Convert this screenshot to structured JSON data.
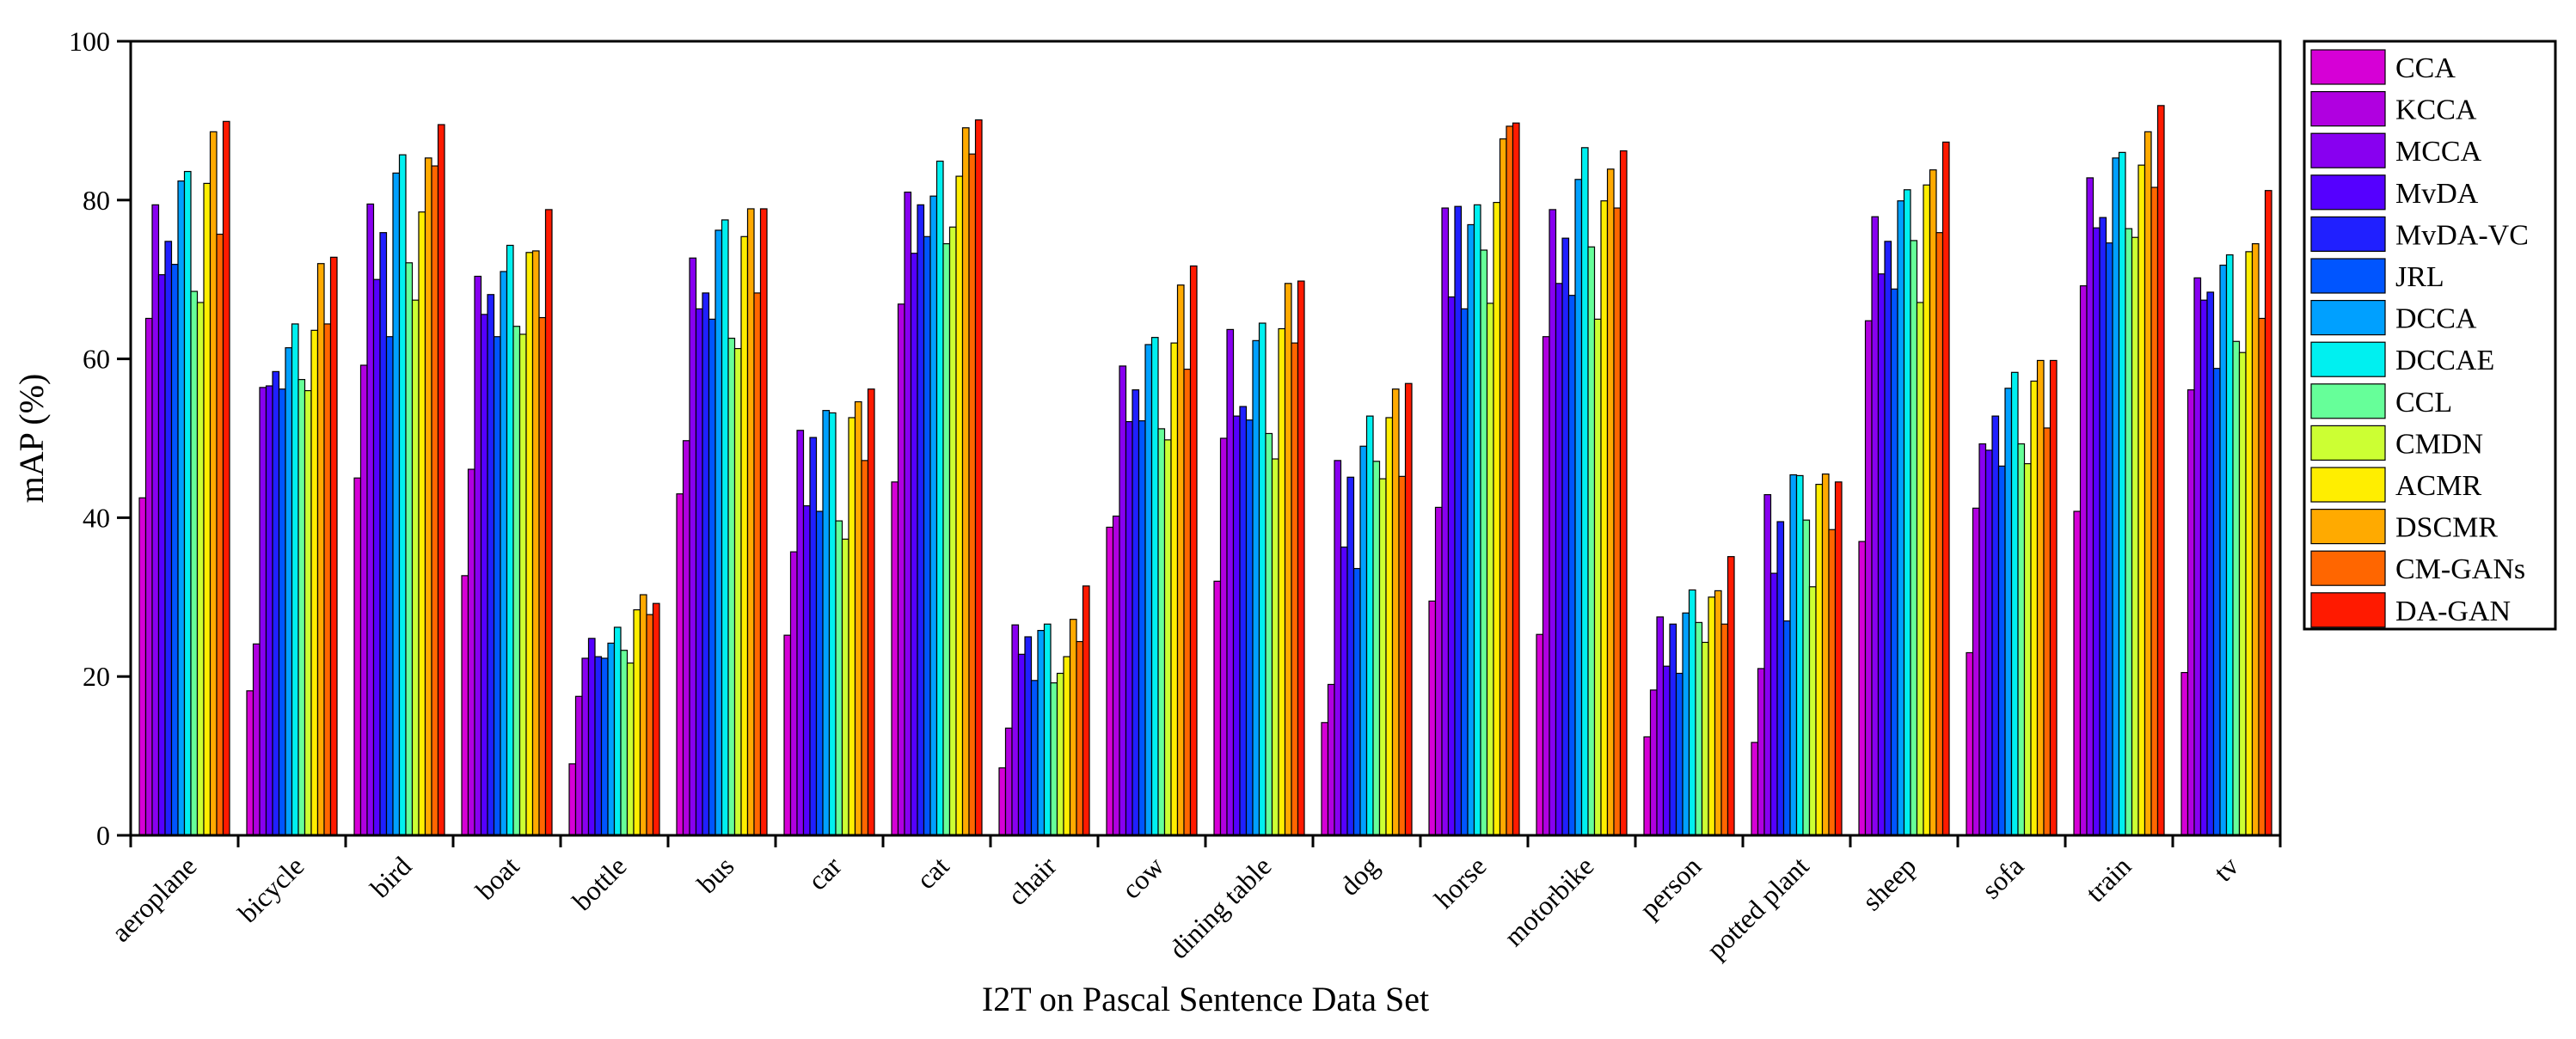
{
  "chart_data": {
    "type": "bar",
    "title": "",
    "xlabel": "I2T on Pascal Sentence Data Set",
    "ylabel": "mAP (%)",
    "ylim": [
      0,
      100
    ],
    "yticks": [
      0,
      20,
      40,
      60,
      80,
      100
    ],
    "grid": false,
    "legend_position": "right",
    "categories": [
      "aeroplane",
      "bicycle",
      "bird",
      "boat",
      "bottle",
      "bus",
      "car",
      "cat",
      "chair",
      "cow",
      "dining table",
      "dog",
      "horse",
      "motorbike",
      "person",
      "potted plant",
      "sheep",
      "sofa",
      "train",
      "tv"
    ],
    "series": [
      {
        "name": "CCA",
        "color": "#d600d6",
        "values": [
          42.5,
          18.2,
          45.0,
          32.7,
          9.0,
          43.0,
          25.2,
          44.5,
          8.5,
          38.8,
          32.0,
          14.2,
          29.5,
          25.3,
          12.4,
          11.7,
          37.0,
          23.0,
          40.8,
          20.5
        ]
      },
      {
        "name": "KCCA",
        "color": "#b000e0",
        "values": [
          65.1,
          24.1,
          59.2,
          46.1,
          17.5,
          49.7,
          35.7,
          66.9,
          13.5,
          40.2,
          50.0,
          19.0,
          41.3,
          62.8,
          18.3,
          21.0,
          64.8,
          41.2,
          69.2,
          56.1
        ]
      },
      {
        "name": "MCCA",
        "color": "#8800f0",
        "values": [
          79.4,
          56.4,
          79.5,
          70.4,
          22.3,
          72.7,
          51.0,
          81.0,
          26.5,
          59.1,
          63.7,
          47.2,
          79.0,
          78.8,
          27.5,
          42.9,
          77.9,
          49.3,
          82.8,
          70.2
        ]
      },
      {
        "name": "MvDA",
        "color": "#5500ff",
        "values": [
          70.6,
          56.6,
          70.0,
          65.6,
          24.8,
          66.3,
          41.5,
          73.3,
          22.8,
          52.1,
          52.8,
          36.3,
          67.8,
          69.5,
          21.3,
          33.0,
          70.7,
          48.5,
          76.5,
          67.4
        ]
      },
      {
        "name": "MvDA-VC",
        "color": "#2020ff",
        "values": [
          74.8,
          58.4,
          75.9,
          68.1,
          22.5,
          68.3,
          50.1,
          79.4,
          25.0,
          56.1,
          54.0,
          45.1,
          79.2,
          75.2,
          26.6,
          39.5,
          74.8,
          52.8,
          77.8,
          68.4
        ]
      },
      {
        "name": "JRL",
        "color": "#0055ff",
        "values": [
          71.9,
          56.2,
          62.8,
          62.8,
          22.3,
          65.0,
          40.8,
          75.4,
          19.5,
          52.2,
          52.3,
          33.6,
          66.3,
          68.0,
          20.4,
          27.0,
          68.8,
          46.5,
          74.6,
          58.8
        ]
      },
      {
        "name": "DCCA",
        "color": "#00a0ff",
        "values": [
          82.4,
          61.4,
          83.4,
          71.0,
          24.2,
          76.2,
          53.5,
          80.5,
          25.8,
          61.8,
          62.3,
          49.0,
          76.9,
          82.6,
          28.0,
          45.4,
          79.9,
          56.3,
          85.3,
          71.8
        ]
      },
      {
        "name": "DCCAE",
        "color": "#00f0f0",
        "values": [
          83.6,
          64.4,
          85.7,
          74.3,
          26.2,
          77.5,
          53.2,
          84.9,
          26.6,
          62.7,
          64.5,
          52.8,
          79.4,
          86.6,
          30.9,
          45.3,
          81.3,
          58.3,
          86.0,
          73.1
        ]
      },
      {
        "name": "CCL",
        "color": "#66ff99",
        "values": [
          68.5,
          57.4,
          72.1,
          64.1,
          23.3,
          62.6,
          39.6,
          74.5,
          19.2,
          51.2,
          50.6,
          47.1,
          73.7,
          74.1,
          26.8,
          39.7,
          74.9,
          49.3,
          76.4,
          62.2
        ]
      },
      {
        "name": "CMDN",
        "color": "#ccff33",
        "values": [
          67.1,
          56.0,
          67.4,
          63.1,
          21.7,
          61.3,
          37.3,
          76.6,
          20.4,
          49.8,
          47.4,
          44.9,
          67.0,
          65.0,
          24.3,
          31.3,
          67.1,
          46.8,
          75.3,
          60.8
        ]
      },
      {
        "name": "ACMR",
        "color": "#ffee00",
        "values": [
          82.1,
          63.6,
          78.5,
          73.4,
          28.4,
          75.4,
          52.6,
          83.0,
          22.5,
          62.0,
          63.8,
          52.6,
          79.7,
          79.9,
          30.0,
          44.2,
          81.9,
          57.2,
          84.4,
          73.5
        ]
      },
      {
        "name": "DSCMR",
        "color": "#ffaa00",
        "values": [
          88.6,
          72.0,
          85.3,
          73.6,
          30.3,
          78.9,
          54.6,
          89.1,
          27.2,
          69.3,
          69.5,
          56.2,
          87.7,
          83.9,
          30.8,
          45.5,
          83.8,
          59.8,
          88.6,
          74.5
        ]
      },
      {
        "name": "CM-GANs",
        "color": "#ff6600",
        "values": [
          75.7,
          64.4,
          84.3,
          65.2,
          27.8,
          68.3,
          47.2,
          85.8,
          24.4,
          58.7,
          62.0,
          45.2,
          89.3,
          79.0,
          26.6,
          38.5,
          75.9,
          51.3,
          81.6,
          65.1
        ]
      },
      {
        "name": "DA-GAN",
        "color": "#ff1a00",
        "values": [
          89.9,
          72.8,
          89.5,
          78.8,
          29.2,
          78.9,
          56.2,
          90.1,
          31.4,
          71.7,
          69.8,
          56.9,
          89.7,
          86.2,
          35.1,
          44.5,
          87.3,
          59.8,
          91.9,
          81.2
        ]
      }
    ]
  }
}
